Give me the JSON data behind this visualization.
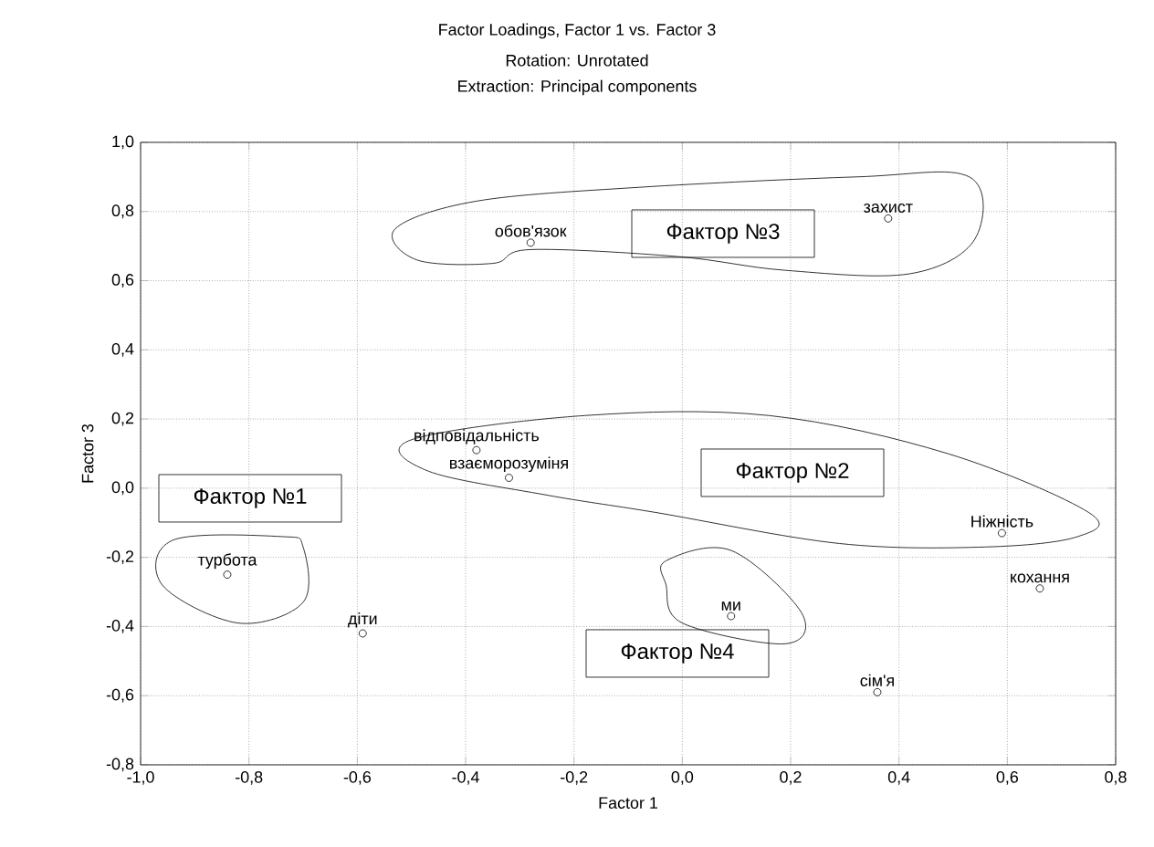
{
  "chart_data": {
    "type": "scatter",
    "title": "Factor Loadings, Factor 1 vs. Factor 3",
    "subtitle": "Rotation: Unrotated",
    "xlabel": "Factor 1",
    "ylabel": "Factor 3",
    "x": [
      -0.84,
      -0.59,
      -0.28,
      0.38,
      -0.38,
      -0.32,
      0.59,
      0.66,
      0.09,
      0.36
    ],
    "values": [
      -0.25,
      -0.42,
      0.71,
      0.78,
      0.11,
      0.03,
      -0.13,
      -0.29,
      -0.37,
      -0.59
    ],
    "color": "#000000",
    "marker": "circle",
    "grid": true,
    "xlim": [
      -1.0,
      0.8
    ],
    "ylim": [
      -0.8,
      1.0
    ],
    "xticks": [
      {
        "value": -1.0,
        "label": "-1,0"
      },
      {
        "value": -0.8,
        "label": "-0,8"
      },
      {
        "value": -0.6,
        "label": "-0,6"
      },
      {
        "value": -0.4,
        "label": "-0,4"
      },
      {
        "value": -0.2,
        "label": "-0,2"
      },
      {
        "value": 0.0,
        "label": "0,0"
      },
      {
        "value": 0.2,
        "label": "0,2"
      },
      {
        "value": 0.4,
        "label": "0,4"
      },
      {
        "value": 0.6,
        "label": "0,6"
      },
      {
        "value": 0.8,
        "label": "0,8"
      }
    ],
    "yticks": [
      {
        "value": -0.8,
        "label": "-0,8"
      },
      {
        "value": -0.6,
        "label": "-0,6"
      },
      {
        "value": -0.4,
        "label": "-0,4"
      },
      {
        "value": -0.2,
        "label": "-0,2"
      },
      {
        "value": 0.0,
        "label": "0,0"
      },
      {
        "value": 0.2,
        "label": "0,2"
      },
      {
        "value": 0.4,
        "label": "0,4"
      },
      {
        "value": 0.6,
        "label": "0,6"
      },
      {
        "value": 0.8,
        "label": "0,8"
      },
      {
        "value": 1.0,
        "label": "1,0"
      }
    ],
    "annotations": [
      "Extraction: Principal components",
      {
        "text": "турбота",
        "x": -0.84,
        "y": -0.25
      },
      {
        "text": "діти",
        "x": -0.59,
        "y": -0.42
      },
      {
        "text": "обов'язок",
        "x": -0.28,
        "y": 0.71
      },
      {
        "text": "захист",
        "x": 0.38,
        "y": 0.78
      },
      {
        "text": "відповідальність",
        "x": -0.38,
        "y": 0.11
      },
      {
        "text": "взаєморозуміня",
        "x": -0.32,
        "y": 0.03
      },
      {
        "text": "Ніжність",
        "x": 0.59,
        "y": -0.13
      },
      {
        "text": "кохання",
        "x": 0.66,
        "y": -0.29
      },
      {
        "text": "ми",
        "x": 0.09,
        "y": -0.37
      },
      {
        "text": "сім'я",
        "x": 0.36,
        "y": -0.59
      },
      "Фактор №1",
      "Фактор №2",
      "Фактор №3",
      "Фактор №4"
    ]
  }
}
